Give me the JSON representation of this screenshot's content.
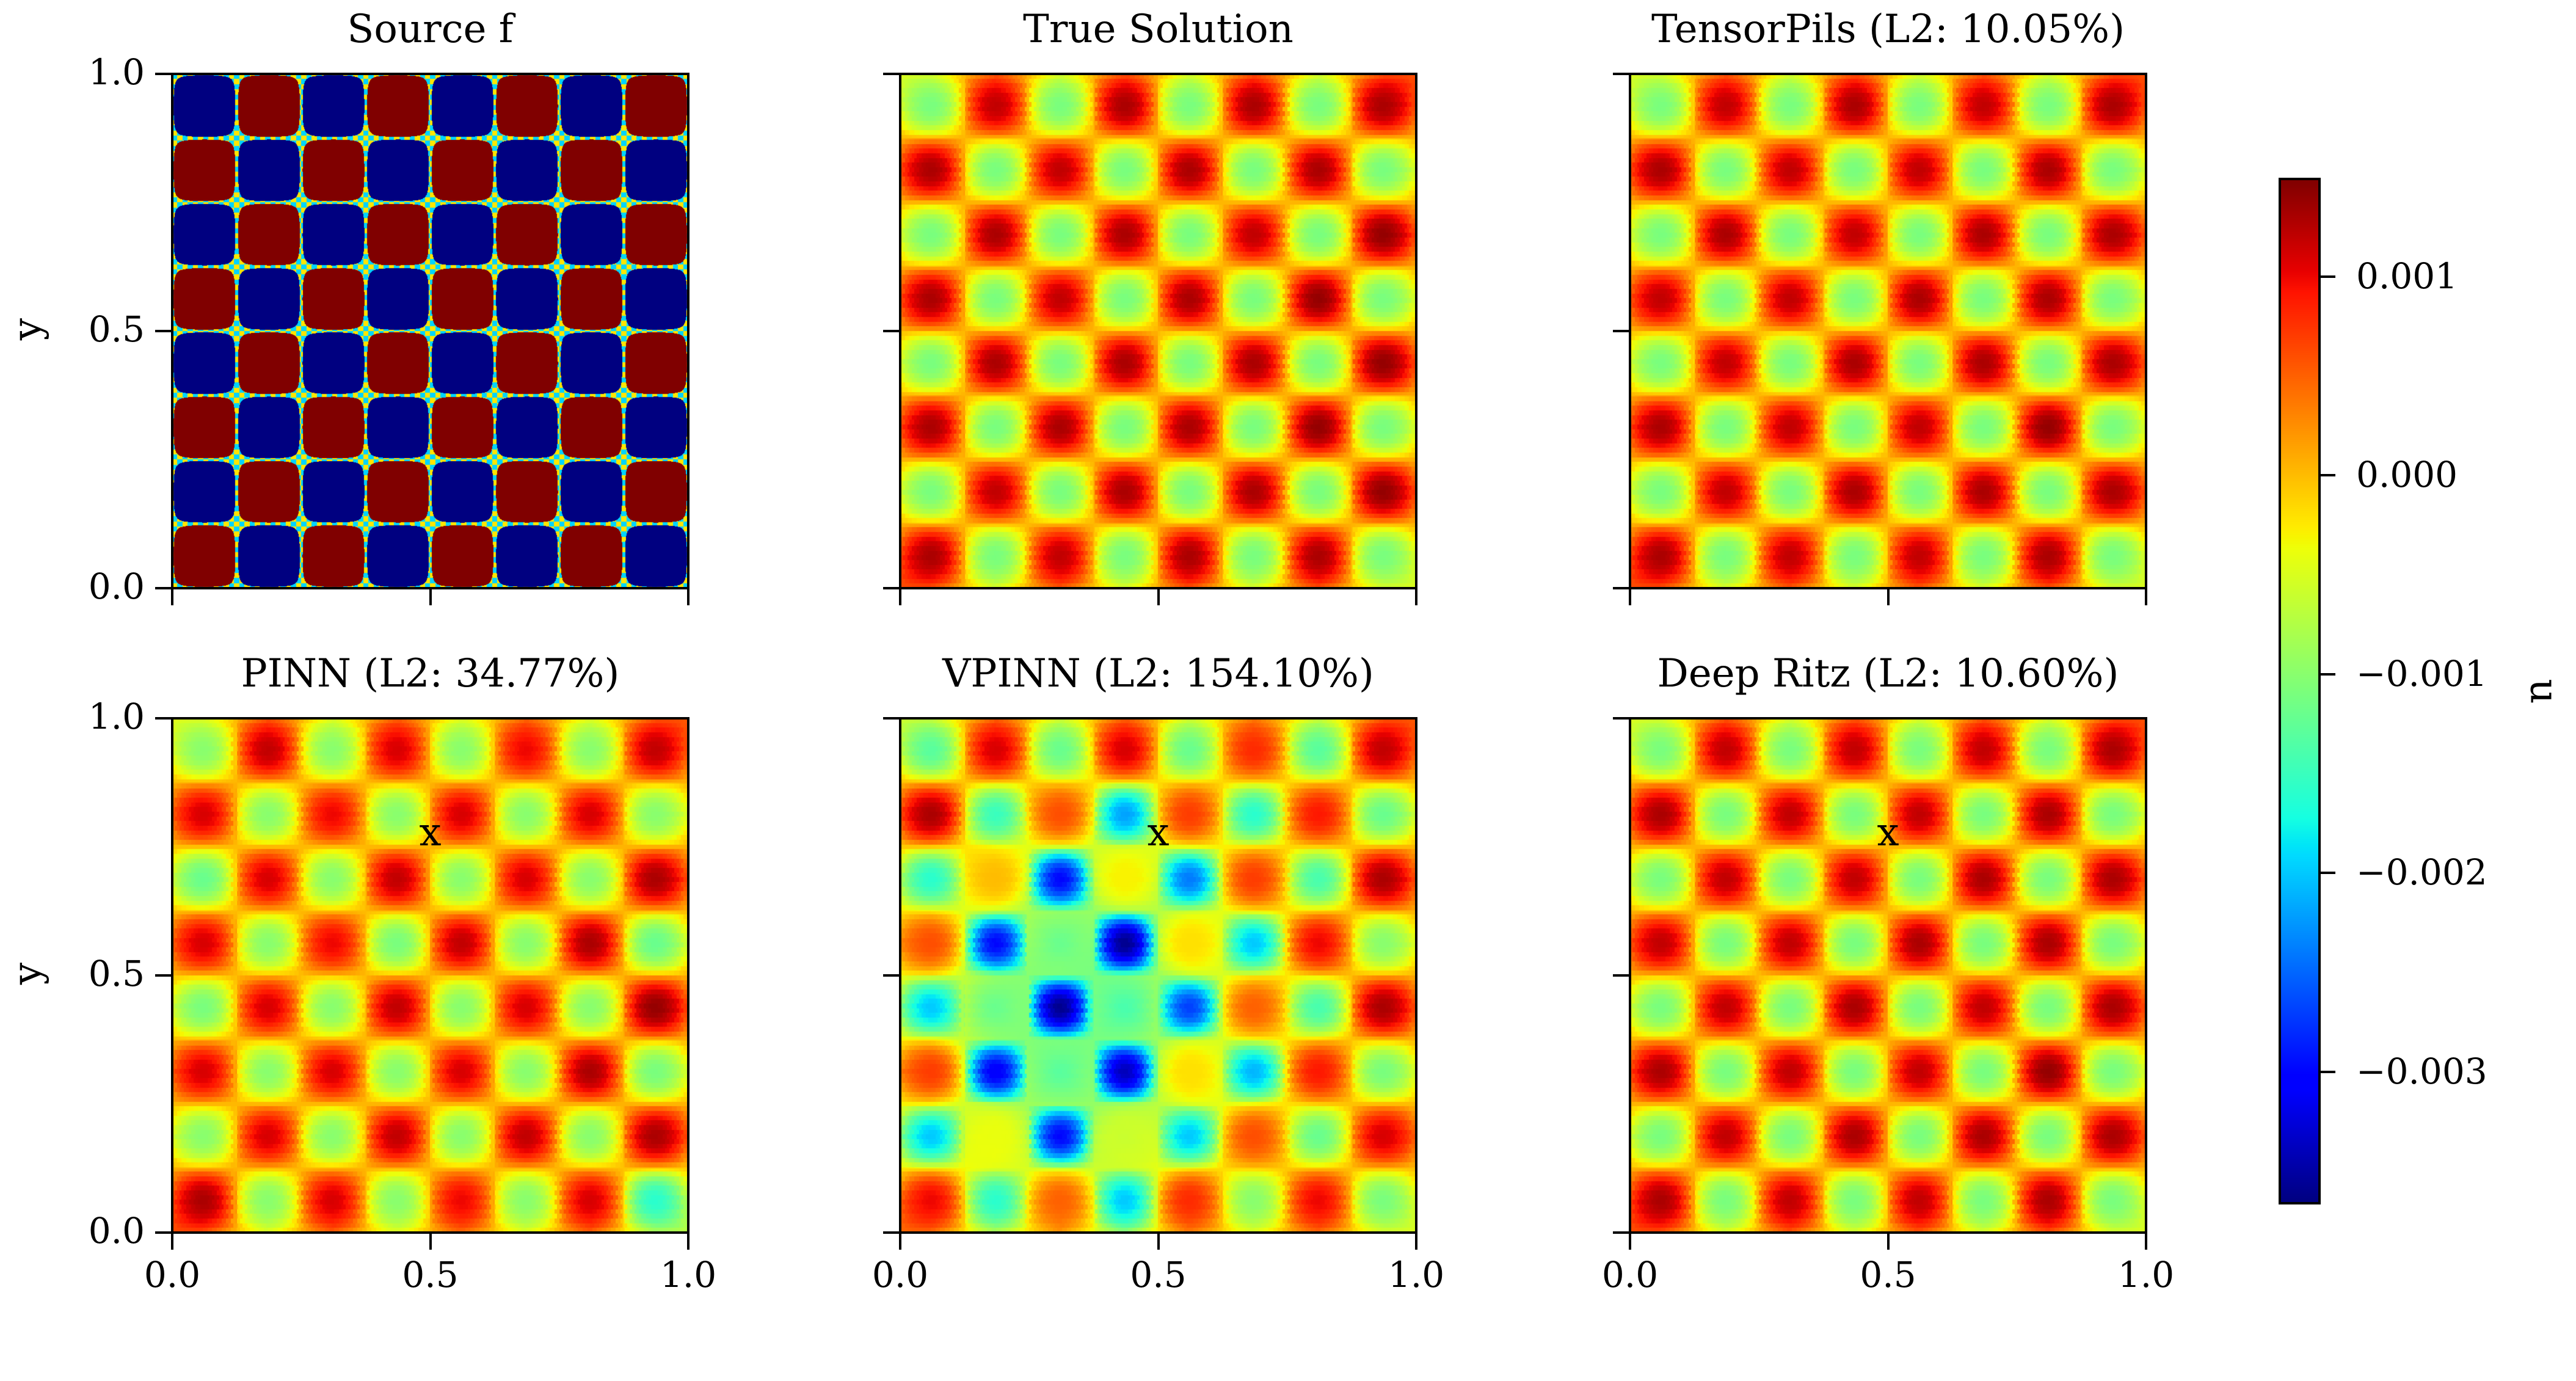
{
  "chart_data": [
    {
      "type": "heatmap",
      "title": "Source f",
      "xlabel": "",
      "ylabel": "y",
      "xlim": [
        0,
        1
      ],
      "ylim": [
        0,
        1
      ],
      "xticks": [
        0,
        0.5,
        1
      ],
      "xtick_labels": [
        "0.0",
        "0.5",
        "1.0"
      ],
      "yticks": [
        0,
        0.5,
        1
      ],
      "ytick_labels": [
        "0.0",
        "0.5",
        "1.0"
      ],
      "show_xtick_labels": false,
      "show_ytick_labels": true,
      "colormap": "jet",
      "clim": [
        -1,
        1
      ],
      "cell_values_rows_top_to_bottom": [
        [
          -1,
          1,
          -1,
          1,
          -1,
          1,
          -1,
          1
        ],
        [
          1,
          -1,
          1,
          -1,
          1,
          -1,
          1,
          -1
        ],
        [
          -1,
          1,
          -1,
          1,
          -1,
          1,
          -1,
          1
        ],
        [
          1,
          -1,
          1,
          -1,
          1,
          -1,
          1,
          -1
        ],
        [
          -1,
          1,
          -1,
          1,
          -1,
          1,
          -1,
          1
        ],
        [
          1,
          -1,
          1,
          -1,
          1,
          -1,
          1,
          -1
        ],
        [
          -1,
          1,
          -1,
          1,
          -1,
          1,
          -1,
          1
        ],
        [
          1,
          -1,
          1,
          -1,
          1,
          -1,
          1,
          -1
        ]
      ]
    },
    {
      "type": "heatmap",
      "title": "True Solution",
      "xlabel": "",
      "ylabel": "",
      "xlim": [
        0,
        1
      ],
      "ylim": [
        0,
        1
      ],
      "xticks": [
        0,
        0.5,
        1
      ],
      "xtick_labels": [
        "0.0",
        "0.5",
        "1.0"
      ],
      "yticks": [
        0,
        0.5,
        1
      ],
      "ytick_labels": [
        "0.0",
        "0.5",
        "1.0"
      ],
      "show_xtick_labels": false,
      "show_ytick_labels": false,
      "colormap": "jet",
      "clim": [
        -0.00366,
        0.00149
      ],
      "cell_values_rows_top_to_bottom": [
        [
          -0.0011,
          0.0012,
          -0.0011,
          0.0013,
          -0.0011,
          0.0013,
          -0.0011,
          0.0013
        ],
        [
          0.0013,
          -0.0011,
          0.0012,
          -0.0011,
          0.0013,
          -0.0011,
          0.0013,
          -0.0011
        ],
        [
          -0.0011,
          0.0013,
          -0.0011,
          0.0013,
          -0.0011,
          0.0012,
          -0.0011,
          0.0014
        ],
        [
          0.0013,
          -0.0011,
          0.0012,
          -0.0011,
          0.0013,
          -0.0011,
          0.0014,
          -0.0011
        ],
        [
          -0.0011,
          0.0013,
          -0.0011,
          0.0013,
          -0.0011,
          0.0013,
          -0.0011,
          0.0014
        ],
        [
          0.0013,
          -0.0011,
          0.0013,
          -0.0011,
          0.0013,
          -0.0011,
          0.0014,
          -0.0011
        ],
        [
          -0.0011,
          0.0012,
          -0.0011,
          0.0013,
          -0.0011,
          0.0013,
          -0.0011,
          0.0014
        ],
        [
          0.0013,
          -0.0011,
          0.0012,
          -0.0011,
          0.0013,
          -0.0011,
          0.0013,
          -0.0011
        ]
      ]
    },
    {
      "type": "heatmap",
      "title": "TensorPils (L2: 10.05%)",
      "xlabel": "",
      "ylabel": "",
      "xlim": [
        0,
        1
      ],
      "ylim": [
        0,
        1
      ],
      "xticks": [
        0,
        0.5,
        1
      ],
      "xtick_labels": [
        "0.0",
        "0.5",
        "1.0"
      ],
      "yticks": [
        0,
        0.5,
        1
      ],
      "ytick_labels": [
        "0.0",
        "0.5",
        "1.0"
      ],
      "show_xtick_labels": false,
      "show_ytick_labels": false,
      "colormap": "jet",
      "clim": [
        -0.00366,
        0.00149
      ],
      "cell_values_rows_top_to_bottom": [
        [
          -0.0011,
          0.0012,
          -0.0011,
          0.0013,
          -0.0011,
          0.0012,
          -0.0011,
          0.0013
        ],
        [
          0.0013,
          -0.0011,
          0.0012,
          -0.0011,
          0.0012,
          -0.0011,
          0.0013,
          -0.0011
        ],
        [
          -0.0011,
          0.0013,
          -0.0011,
          0.0012,
          -0.0011,
          0.0013,
          -0.0011,
          0.0013
        ],
        [
          0.0012,
          -0.0011,
          0.0012,
          -0.0011,
          0.0013,
          -0.0011,
          0.0013,
          -0.0011
        ],
        [
          -0.0011,
          0.0012,
          -0.0011,
          0.0013,
          -0.0011,
          0.0013,
          -0.0011,
          0.0013
        ],
        [
          0.0013,
          -0.0011,
          0.0012,
          -0.0011,
          0.0012,
          -0.0011,
          0.0014,
          -0.0011
        ],
        [
          -0.0011,
          0.0012,
          -0.0011,
          0.0013,
          -0.0011,
          0.0013,
          -0.0011,
          0.0013
        ],
        [
          0.0013,
          -0.0011,
          0.0012,
          -0.0011,
          0.0012,
          -0.0011,
          0.0013,
          -0.0011
        ]
      ]
    },
    {
      "type": "heatmap",
      "title": "PINN (L2: 34.77%)",
      "xlabel": "x",
      "ylabel": "y",
      "xlim": [
        0,
        1
      ],
      "ylim": [
        0,
        1
      ],
      "xticks": [
        0,
        0.5,
        1
      ],
      "xtick_labels": [
        "0.0",
        "0.5",
        "1.0"
      ],
      "yticks": [
        0,
        0.5,
        1
      ],
      "ytick_labels": [
        "0.0",
        "0.5",
        "1.0"
      ],
      "show_xtick_labels": true,
      "show_ytick_labels": true,
      "colormap": "jet",
      "clim": [
        -0.00366,
        0.00149
      ],
      "cell_values_rows_top_to_bottom": [
        [
          -0.001,
          0.0012,
          -0.001,
          0.0011,
          -0.001,
          0.001,
          -0.001,
          0.0012
        ],
        [
          0.0011,
          -0.001,
          0.001,
          -0.001,
          0.0011,
          -0.001,
          0.0011,
          -0.001
        ],
        [
          -0.0012,
          0.0011,
          -0.001,
          0.0012,
          -0.001,
          0.0011,
          -0.001,
          0.0013
        ],
        [
          0.0011,
          -0.001,
          0.001,
          -0.0011,
          0.0012,
          -0.001,
          0.0013,
          -0.0012
        ],
        [
          -0.0011,
          0.0011,
          -0.001,
          0.0012,
          -0.001,
          0.0011,
          -0.001,
          0.0014
        ],
        [
          0.0011,
          -0.001,
          0.0011,
          -0.001,
          0.0011,
          -0.001,
          0.0013,
          -0.0011
        ],
        [
          -0.001,
          0.0011,
          -0.001,
          0.0012,
          -0.001,
          0.0012,
          -0.001,
          0.0013
        ],
        [
          0.0013,
          -0.001,
          0.0011,
          -0.001,
          0.001,
          -0.001,
          0.0011,
          -0.0016
        ]
      ]
    },
    {
      "type": "heatmap",
      "title": "VPINN (L2: 154.10%)",
      "xlabel": "x",
      "ylabel": "",
      "xlim": [
        0,
        1
      ],
      "ylim": [
        0,
        1
      ],
      "xticks": [
        0,
        0.5,
        1
      ],
      "xtick_labels": [
        "0.0",
        "0.5",
        "1.0"
      ],
      "yticks": [
        0,
        0.5,
        1
      ],
      "ytick_labels": [
        "0.0",
        "0.5",
        "1.0"
      ],
      "show_xtick_labels": true,
      "show_ytick_labels": false,
      "colormap": "jet",
      "clim": [
        -0.00366,
        0.00149
      ],
      "cell_values_rows_top_to_bottom": [
        [
          -0.0013,
          0.0011,
          -0.0012,
          0.0011,
          -0.0012,
          0.0008,
          -0.0013,
          0.0012
        ],
        [
          0.0013,
          -0.0015,
          0.0006,
          -0.0022,
          0.0007,
          -0.0016,
          0.0009,
          -0.0012
        ],
        [
          -0.0016,
          0.0,
          -0.003,
          -0.0003,
          -0.0024,
          0.0007,
          -0.0014,
          0.0013
        ],
        [
          0.0006,
          -0.003,
          -0.0012,
          -0.0036,
          -0.0002,
          -0.002,
          0.001,
          -0.001
        ],
        [
          -0.002,
          -0.0012,
          -0.0036,
          -0.0014,
          -0.0027,
          0.0005,
          -0.0014,
          0.0013
        ],
        [
          0.0007,
          -0.0031,
          -0.0013,
          -0.0034,
          -0.0002,
          -0.0021,
          0.0009,
          -0.0011
        ],
        [
          -0.002,
          -0.0004,
          -0.003,
          -0.0006,
          -0.002,
          0.0006,
          -0.0012,
          0.0011
        ],
        [
          0.001,
          -0.0016,
          0.0005,
          -0.002,
          0.0008,
          -0.001,
          0.001,
          -0.0011
        ]
      ]
    },
    {
      "type": "heatmap",
      "title": "Deep Ritz (L2: 10.60%)",
      "xlabel": "x",
      "ylabel": "",
      "xlim": [
        0,
        1
      ],
      "ylim": [
        0,
        1
      ],
      "xticks": [
        0,
        0.5,
        1
      ],
      "xtick_labels": [
        "0.0",
        "0.5",
        "1.0"
      ],
      "yticks": [
        0,
        0.5,
        1
      ],
      "ytick_labels": [
        "0.0",
        "0.5",
        "1.0"
      ],
      "show_xtick_labels": true,
      "show_ytick_labels": false,
      "colormap": "jet",
      "clim": [
        -0.00366,
        0.00149
      ],
      "cell_values_rows_top_to_bottom": [
        [
          -0.0011,
          0.0012,
          -0.0011,
          0.0012,
          -0.0011,
          0.0012,
          -0.0011,
          0.0013
        ],
        [
          0.0013,
          -0.0011,
          0.0012,
          -0.0011,
          0.0012,
          -0.0011,
          0.0013,
          -0.0011
        ],
        [
          -0.0011,
          0.0012,
          -0.0011,
          0.0012,
          -0.0011,
          0.0013,
          -0.0011,
          0.0013
        ],
        [
          0.0012,
          -0.0011,
          0.0012,
          -0.0011,
          0.0013,
          -0.0011,
          0.0013,
          -0.0011
        ],
        [
          -0.0011,
          0.0012,
          -0.0011,
          0.0013,
          -0.0011,
          0.0012,
          -0.0011,
          0.0013
        ],
        [
          0.0013,
          -0.0011,
          0.0012,
          -0.0011,
          0.0012,
          -0.0011,
          0.0014,
          -0.0011
        ],
        [
          -0.0011,
          0.0012,
          -0.0011,
          0.0013,
          -0.0011,
          0.0013,
          -0.0011,
          0.0013
        ],
        [
          0.0013,
          -0.0011,
          0.0012,
          -0.0011,
          0.0012,
          -0.0011,
          0.0013,
          -0.0011
        ]
      ]
    }
  ],
  "colorbar": {
    "label": "u",
    "colormap": "jet",
    "range": [
      -0.00366,
      0.00149
    ],
    "ticks": [
      0.001,
      0.0,
      -0.001,
      -0.002,
      -0.003
    ],
    "tick_labels": [
      "0.001",
      "0.000",
      "−0.001",
      "−0.002",
      "−0.003"
    ]
  }
}
